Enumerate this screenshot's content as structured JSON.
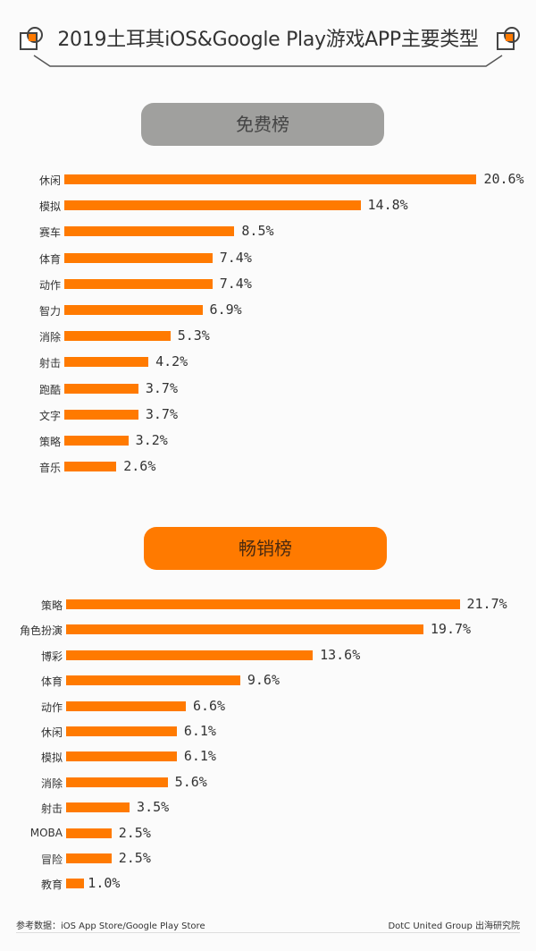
{
  "title": "2019土耳其iOS&Google Play游戏APP主要类型",
  "colors": {
    "bar": "#ff7a00",
    "free_pill": "#a0a09e",
    "gross_pill": "#ff7a00",
    "text": "#333333"
  },
  "sections": {
    "free": {
      "label": "免费榜"
    },
    "gross": {
      "label": "畅销榜"
    }
  },
  "footer": {
    "source": "参考数据：iOS App Store/Google Play Store",
    "credit": "DotC United Group 出海研究院"
  },
  "chart_data": [
    {
      "type": "bar",
      "orientation": "horizontal",
      "title": "免费榜",
      "categories": [
        "休闲",
        "模拟",
        "赛车",
        "体育",
        "动作",
        "智力",
        "消除",
        "射击",
        "跑酷",
        "文字",
        "策略",
        "音乐"
      ],
      "values": [
        20.6,
        14.8,
        8.5,
        7.4,
        7.4,
        6.9,
        5.3,
        4.2,
        3.7,
        3.7,
        3.2,
        2.6
      ],
      "labels": [
        "20.6%",
        "14.8%",
        "8.5%",
        "7.4%",
        "7.4%",
        "6.9%",
        "5.3%",
        "4.2%",
        "3.7%",
        "3.7%",
        "3.2%",
        "2.6%"
      ],
      "unit": "%",
      "xlabel": "",
      "ylabel": "",
      "grid": false
    },
    {
      "type": "bar",
      "orientation": "horizontal",
      "title": "畅销榜",
      "categories": [
        "策略",
        "角色扮演",
        "博彩",
        "体育",
        "动作",
        "休闲",
        "模拟",
        "消除",
        "射击",
        "MOBA",
        "冒险",
        "教育"
      ],
      "values": [
        21.7,
        19.7,
        13.6,
        9.6,
        6.6,
        6.1,
        6.1,
        5.6,
        3.5,
        2.5,
        2.5,
        1.0
      ],
      "labels": [
        "21.7%",
        "19.7%",
        "13.6%",
        "9.6%",
        "6.6%",
        "6.1%",
        "6.1%",
        "5.6%",
        "3.5%",
        "2.5%",
        "2.5%",
        "1.0%"
      ],
      "unit": "%",
      "xlabel": "",
      "ylabel": "",
      "grid": false
    }
  ]
}
